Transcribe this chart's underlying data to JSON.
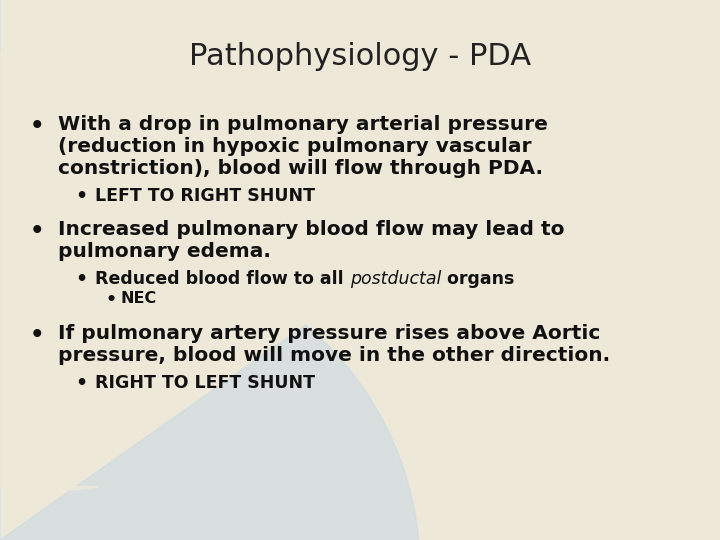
{
  "title": "Pathophysiology - PDA",
  "title_fontsize": 22,
  "title_color": "#222222",
  "text_color": "#111111",
  "bg_cream": "#ede8d8",
  "bg_blue_light": "#b8d8e8",
  "bg_blue_mid": "#90bcd4",
  "bullet1_line1": "With a drop in pulmonary arterial pressure",
  "bullet1_line2": "(reduction in hypoxic pulmonary vascular",
  "bullet1_line3": "constriction), blood will flow through PDA.",
  "bullet1_sub": "LEFT TO RIGHT SHUNT",
  "bullet2_line1": "Increased pulmonary blood flow may lead to",
  "bullet2_line2": "pulmonary edema.",
  "bullet2_sub1_a": "Reduced blood flow to all ",
  "bullet2_sub1_b": "postductal",
  "bullet2_sub1_c": " organs",
  "bullet2_sub2": "NEC",
  "bullet3_line1": "If pulmonary artery pressure rises above Aortic",
  "bullet3_line2": "pressure, blood will move in the other direction.",
  "bullet3_sub": "RIGHT TO LEFT SHUNT",
  "main_fontsize": 14.5,
  "sub_fontsize": 12.5,
  "subsub_fontsize": 11.5
}
